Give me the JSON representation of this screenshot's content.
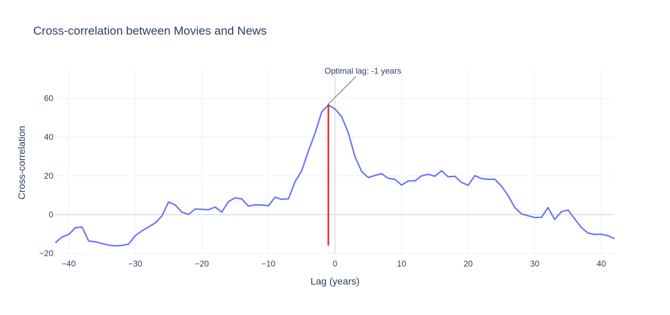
{
  "chart_data": {
    "type": "line",
    "title": "Cross-correlation between Movies and News",
    "xlabel": "Lag (years)",
    "ylabel": "Cross-correlation",
    "xlim": [
      -42,
      42
    ],
    "ylim": [
      -20,
      75
    ],
    "xticks": [
      -40,
      -30,
      -20,
      -10,
      0,
      10,
      20,
      30,
      40
    ],
    "xtick_labels": [
      "−40",
      "−30",
      "−20",
      "−10",
      "0",
      "10",
      "20",
      "30",
      "40"
    ],
    "yticks": [
      -20,
      0,
      20,
      40,
      60
    ],
    "ytick_labels": [
      "−20",
      "0",
      "20",
      "40",
      "60"
    ],
    "grid": true,
    "series": [
      {
        "color": "#636efa",
        "x": [
          -42,
          -41,
          -40,
          -39,
          -38,
          -37,
          -36,
          -35,
          -34,
          -33,
          -32,
          -31,
          -30,
          -29,
          -28,
          -27,
          -26,
          -25,
          -24,
          -23,
          -22,
          -21,
          -20,
          -19,
          -18,
          -17,
          -16,
          -15,
          -14,
          -13,
          -12,
          -11,
          -10,
          -9,
          -8,
          -7,
          -6,
          -5,
          -4,
          -3,
          -2,
          -1,
          0,
          1,
          2,
          3,
          4,
          5,
          6,
          7,
          8,
          9,
          10,
          11,
          12,
          13,
          14,
          15,
          16,
          17,
          18,
          19,
          20,
          21,
          22,
          23,
          24,
          25,
          26,
          27,
          28,
          29,
          30,
          31,
          32,
          33,
          34,
          35,
          36,
          37,
          38,
          39,
          40,
          41,
          42
        ],
        "y": [
          -14.5,
          -11.5,
          -10.3,
          -6.8,
          -6.4,
          -13.6,
          -14.0,
          -14.9,
          -15.8,
          -16.1,
          -15.9,
          -15.2,
          -10.9,
          -8.4,
          -6.4,
          -4.3,
          -0.7,
          6.5,
          5.0,
          1.3,
          0.1,
          2.9,
          2.7,
          2.5,
          3.9,
          1.3,
          6.8,
          8.6,
          8.1,
          4.4,
          5.0,
          5.0,
          4.5,
          9.0,
          7.9,
          8.1,
          17.0,
          22.6,
          32.8,
          41.9,
          53.0,
          56.5,
          54.5,
          50.6,
          42.2,
          29.9,
          22.3,
          19.1,
          20.2,
          21.1,
          18.7,
          18.2,
          15.2,
          17.4,
          17.4,
          20.0,
          20.8,
          19.8,
          22.6,
          19.5,
          19.8,
          16.6,
          15.1,
          20.1,
          18.6,
          18.2,
          18.2,
          14.7,
          9.8,
          3.7,
          0.4,
          -0.6,
          -1.5,
          -1.4,
          3.6,
          -2.5,
          1.5,
          2.4,
          -2.2,
          -6.6,
          -9.5,
          -10.2,
          -10.1,
          -10.9,
          -12.4
        ]
      }
    ],
    "optimal_line": {
      "x": -1,
      "y_start": -16,
      "y_end": 57,
      "color": "#ff0000"
    },
    "annotation": {
      "text": "Optimal lag: -1 years",
      "x": -1,
      "y": 57
    }
  }
}
